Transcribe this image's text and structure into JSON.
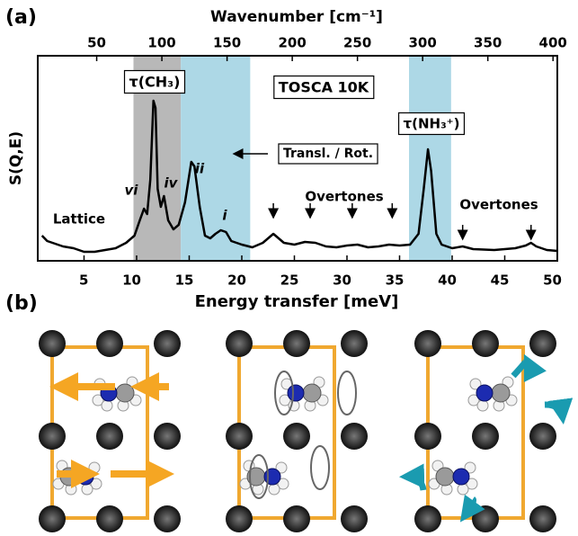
{
  "chart_data": {
    "type": "line",
    "panel_label": "(a)",
    "title": "Wavenumber [cm⁻¹]",
    "x_label": "Energy transfer [meV]",
    "y_label": "S(Q,E)",
    "x": [
      1,
      1.5,
      2,
      3,
      4,
      5,
      6,
      7,
      8,
      9,
      9.8,
      10.3,
      10.7,
      11,
      11.3,
      11.6,
      11.8,
      12,
      12.3,
      12.6,
      13,
      13.5,
      14,
      14.6,
      15.2,
      15.5,
      16,
      16.5,
      17,
      17.5,
      18,
      18.5,
      19,
      20,
      21,
      22,
      23,
      24,
      25,
      26,
      27,
      28,
      29,
      30,
      31,
      32,
      33,
      34,
      35,
      36,
      36.8,
      37.3,
      37.7,
      38,
      38.5,
      39,
      40,
      41,
      42,
      44,
      46,
      47,
      47.5,
      48,
      49,
      50
    ],
    "series": [
      {
        "color": "#000000",
        "values": [
          28,
          22,
          20,
          16,
          14,
          10,
          10,
          12,
          14,
          20,
          28,
          45,
          58,
          52,
          90,
          178,
          170,
          80,
          60,
          72,
          45,
          35,
          40,
          65,
          110,
          105,
          60,
          28,
          25,
          30,
          34,
          32,
          22,
          18,
          15,
          20,
          30,
          20,
          18,
          21,
          20,
          16,
          15,
          17,
          18,
          15,
          16,
          18,
          17,
          18,
          30,
          80,
          124,
          100,
          30,
          18,
          14,
          16,
          13,
          12,
          14,
          17,
          20,
          16,
          12,
          11
        ]
      }
    ],
    "xlim": [
      0.6,
      50
    ],
    "xticks": [
      5,
      10,
      15,
      20,
      25,
      30,
      35,
      40,
      45,
      50
    ],
    "x2lim": [
      4.8,
      403.3
    ],
    "x2ticks": [
      50,
      100,
      150,
      200,
      250,
      300,
      350,
      400
    ],
    "ylim": [
      0,
      228
    ],
    "shaded_regions": [
      {
        "xlim": [
          9.7,
          14.2
        ],
        "color": "#b8b8b8"
      },
      {
        "xlim": [
          14.2,
          20.8
        ],
        "color": "#add8e6"
      },
      {
        "xlim": [
          35.9,
          39.9
        ],
        "color": "#add8e6"
      }
    ],
    "feature_arrows": [
      23,
      26.5,
      30.5,
      34.3,
      41,
      47.5
    ],
    "annotations": [
      "τ(CH₃)",
      "TOSCA 10K",
      "τ(NH₃⁺)",
      "Transl. / Rot.",
      "Overtones",
      "Overtones",
      "Lattice",
      "vi",
      "iv",
      "ii",
      "i"
    ]
  },
  "panel_b": {
    "label": "(b)"
  }
}
